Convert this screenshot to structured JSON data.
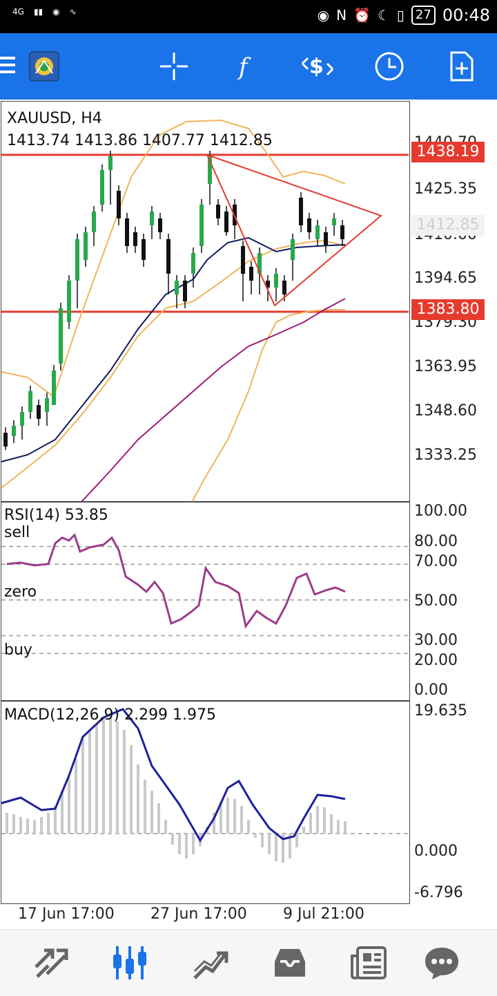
{
  "status_bar": {
    "network": "4G",
    "time": "00:48",
    "battery": "27"
  },
  "toolbar": {
    "icons": [
      "menu-icon",
      "metatrader-logo",
      "crosshair-icon",
      "function-icon",
      "trade-icon",
      "clock-icon",
      "new-document-icon"
    ]
  },
  "chart": {
    "symbol": "XAUUSD, H4",
    "ohlc": "1413.74 1413.86 1407.77 1412.85",
    "price_ticks": [
      "1440.70",
      "1425.35",
      "1410.00",
      "1394.65",
      "1379.30",
      "1363.95",
      "1348.60",
      "1333.25"
    ],
    "price_tags": {
      "resistance": "1438.19",
      "support": "1383.80",
      "current": "1412.85"
    },
    "colors": {
      "bull": "#27a94b",
      "bear": "#111111",
      "bollinger": "#f0b45a",
      "ma_dark": "#0e1a5e",
      "ma_magenta": "#9c1b7a",
      "lines_red": "#e53b2f"
    }
  },
  "rsi": {
    "title": "RSI(14) 53.85",
    "level_labels": {
      "sell": "sell",
      "zero": "zero",
      "buy": "buy"
    },
    "ticks": [
      "100.00",
      "80.00",
      "70.00",
      "50.00",
      "30.00",
      "20.00",
      "0.00"
    ]
  },
  "macd": {
    "title": "MACD(12,26,9) 2.299 1.975",
    "ticks": [
      "19.635",
      "0.000",
      "-6.796"
    ]
  },
  "time_axis": [
    "17 Jun 17:00",
    "27 Jun 17:00",
    "9 Jul 21:00"
  ],
  "bottom_nav": {
    "items": [
      "quotes-icon",
      "chart-icon",
      "trade-icon",
      "history-icon",
      "news-icon",
      "chat-icon"
    ],
    "active_index": 1,
    "active_color": "#1a73e8"
  },
  "chart_data": [
    {
      "type": "candlestick",
      "title": "XAUUSD, H4",
      "ylim": [
        1320,
        1450
      ],
      "horizontal_lines": [
        1438.19,
        1383.8
      ],
      "last_price": 1412.85
    },
    {
      "type": "line",
      "title": "RSI(14) 53.85",
      "ylim": [
        0,
        100
      ],
      "levels": [
        80,
        70,
        50,
        30,
        20
      ],
      "last": 53.85
    },
    {
      "type": "bar",
      "title": "MACD(12,26,9) 2.299 1.975",
      "ylim": [
        -6.796,
        19.635
      ],
      "macd": 2.299,
      "signal": 1.975
    }
  ]
}
